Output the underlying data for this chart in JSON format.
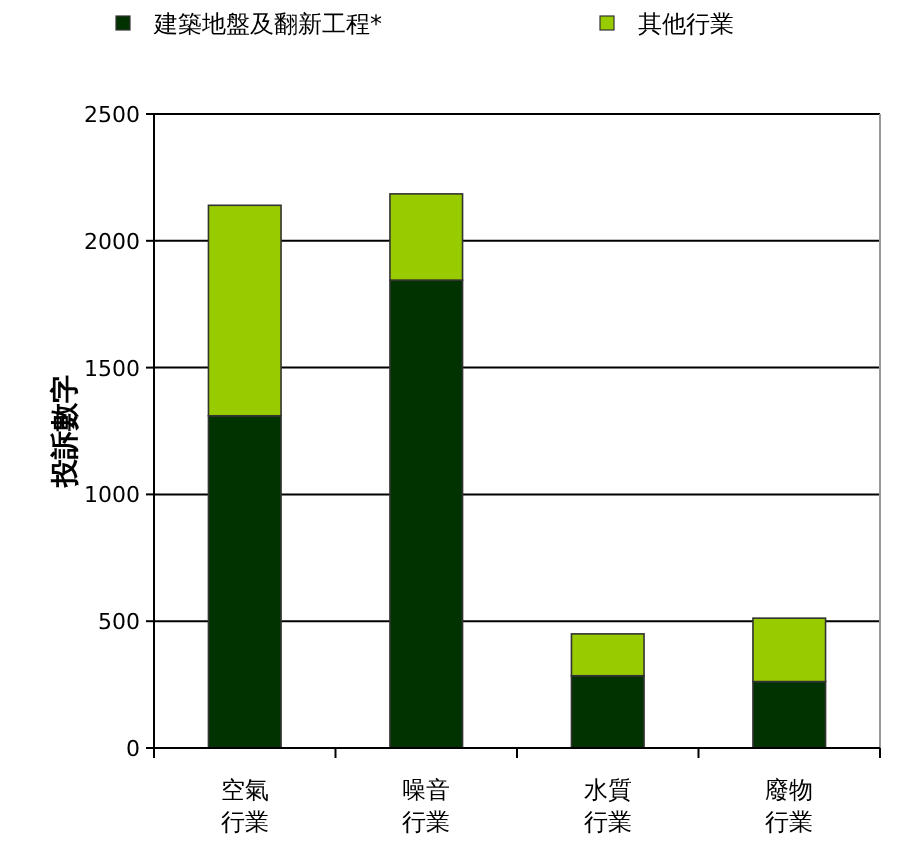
{
  "chart_data": {
    "type": "bar",
    "stacked": true,
    "ylabel": "投訴數字",
    "categories": [
      "空氣行業",
      "噪音行業",
      "水質行業",
      "廢物行業"
    ],
    "series": [
      {
        "name": "建築地盤及翻新工程*",
        "color": "#003300",
        "values": [
          1310,
          1845,
          285,
          262
        ]
      },
      {
        "name": "其他行業",
        "color": "#99cc00",
        "values": [
          830,
          340,
          165,
          250
        ]
      }
    ],
    "ylim": [
      0,
      2500
    ],
    "yticks": [
      0,
      500,
      1000,
      1500,
      2000,
      2500
    ],
    "grid": "y",
    "legend": "top"
  }
}
